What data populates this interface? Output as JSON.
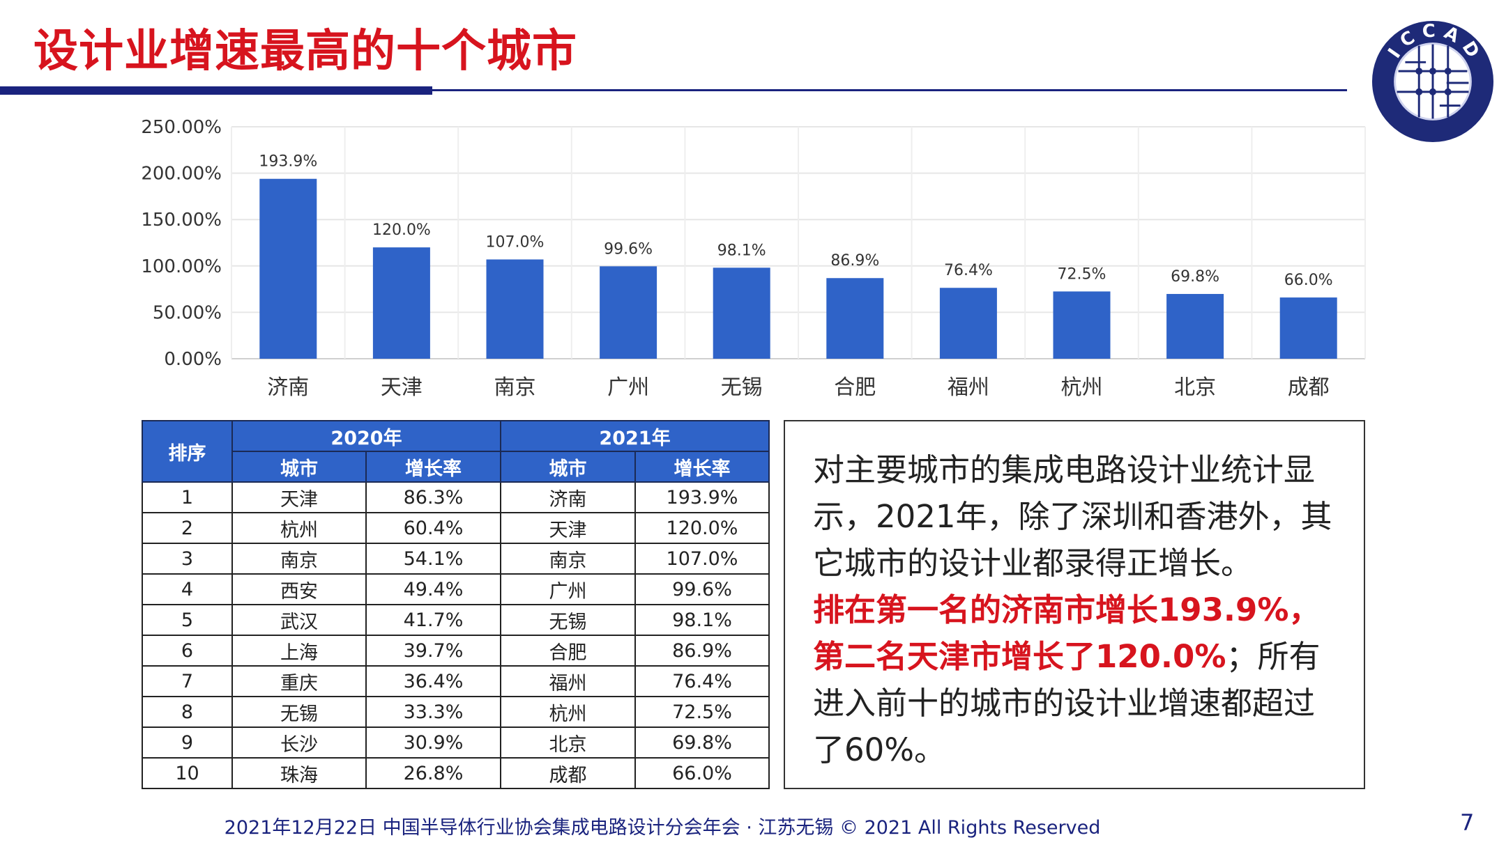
{
  "title": "设计业增速最高的十个城市",
  "logo": {
    "text": "ICCAD",
    "subtext": "中国半导体行业协会集成电路设计分会"
  },
  "chart_data": {
    "type": "bar",
    "categories": [
      "济南",
      "天津",
      "南京",
      "广州",
      "无锡",
      "合肥",
      "福州",
      "杭州",
      "北京",
      "成都"
    ],
    "values": [
      193.9,
      120.0,
      107.0,
      99.6,
      98.1,
      86.9,
      76.4,
      72.5,
      69.8,
      66.0
    ],
    "data_labels": [
      "193.9%",
      "120.0%",
      "107.0%",
      "99.6%",
      "98.1%",
      "86.9%",
      "76.4%",
      "72.5%",
      "69.8%",
      "66.0%"
    ],
    "yticks": [
      "0.00%",
      "50.00%",
      "100.00%",
      "150.00%",
      "200.00%",
      "250.00%"
    ],
    "ylim": [
      0,
      250
    ],
    "grid": true,
    "color": "#2f63c8"
  },
  "table": {
    "rank_header": "排序",
    "year_headers": [
      "2020年",
      "2021年"
    ],
    "sub_headers": [
      "城市",
      "增长率",
      "城市",
      "增长率"
    ],
    "rows": [
      [
        "1",
        "天津",
        "86.3%",
        "济南",
        "193.9%"
      ],
      [
        "2",
        "杭州",
        "60.4%",
        "天津",
        "120.0%"
      ],
      [
        "3",
        "南京",
        "54.1%",
        "南京",
        "107.0%"
      ],
      [
        "4",
        "西安",
        "49.4%",
        "广州",
        "99.6%"
      ],
      [
        "5",
        "武汉",
        "41.7%",
        "无锡",
        "98.1%"
      ],
      [
        "6",
        "上海",
        "39.7%",
        "合肥",
        "86.9%"
      ],
      [
        "7",
        "重庆",
        "36.4%",
        "福州",
        "76.4%"
      ],
      [
        "8",
        "无锡",
        "33.3%",
        "杭州",
        "72.5%"
      ],
      [
        "9",
        "长沙",
        "30.9%",
        "北京",
        "69.8%"
      ],
      [
        "10",
        "珠海",
        "26.8%",
        "成都",
        "66.0%"
      ]
    ]
  },
  "summary": {
    "part1": "对主要城市的集成电路设计业统计显示，2021年，除了深圳和香港外，其它城市的设计业都录得正增长。",
    "highlight": "排在第一名的济南市增长193.9%，第二名天津市增长了120.0%",
    "part2": "；所有进入前十的城市的设计业增速都超过了60%。"
  },
  "footer": "2021年12月22日 中国半导体行业协会集成电路设计分会年会 · 江苏无锡 © 2021 All Rights Reserved",
  "page_number": "7"
}
